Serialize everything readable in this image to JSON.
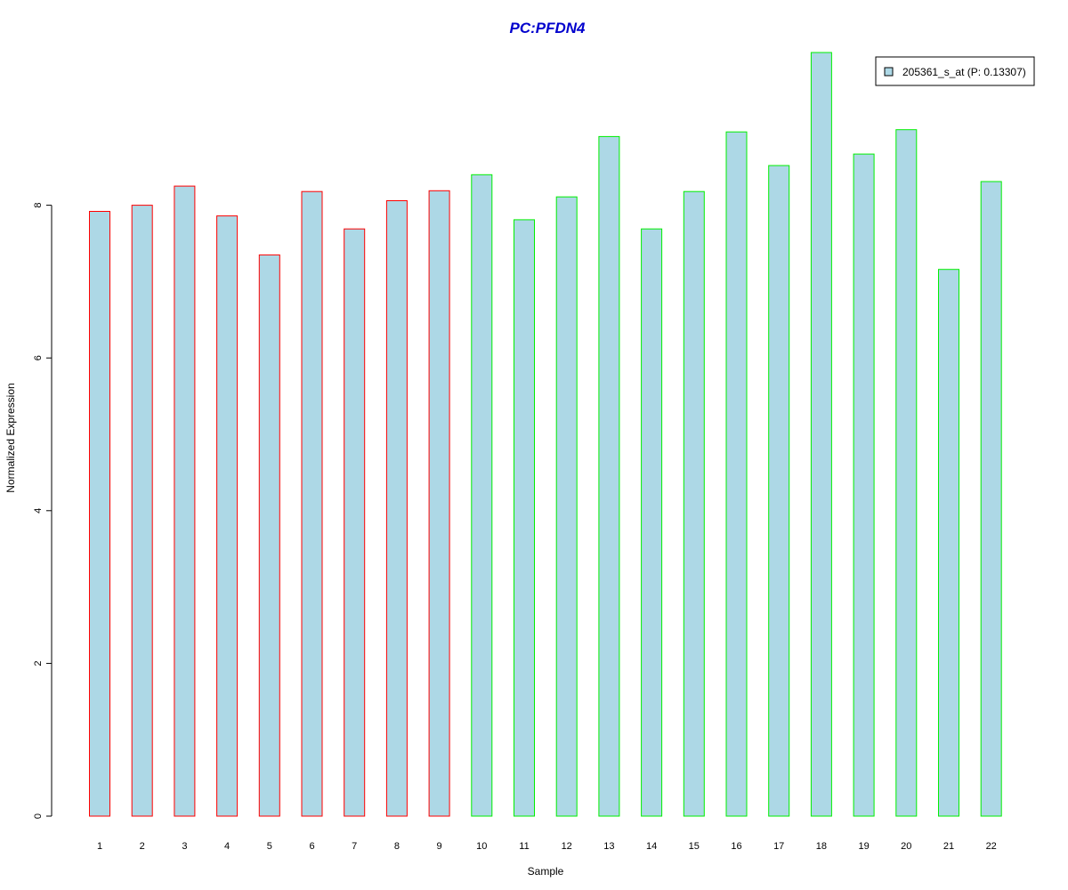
{
  "colors": {
    "bar_fill": "#add8e6",
    "group1_border": "#ff0000",
    "group2_border": "#00ee00",
    "title": "#0000cd",
    "axis": "#000000"
  },
  "chart_data": {
    "type": "bar",
    "title": "PC:PFDN4",
    "xlabel": "Sample",
    "ylabel": "Normalized Expression",
    "ylim": [
      0,
      10
    ],
    "yticks": [
      0,
      2,
      4,
      6,
      8
    ],
    "categories": [
      "1",
      "2",
      "3",
      "4",
      "5",
      "6",
      "7",
      "8",
      "9",
      "10",
      "11",
      "12",
      "13",
      "14",
      "15",
      "16",
      "17",
      "18",
      "19",
      "20",
      "21",
      "22"
    ],
    "series": [
      {
        "name": "205361_s_at (P: 0.13307)",
        "values": [
          7.92,
          8.0,
          8.25,
          7.86,
          7.35,
          8.18,
          7.69,
          8.06,
          8.19,
          8.4,
          7.81,
          8.11,
          8.9,
          7.69,
          8.18,
          8.96,
          8.52,
          10.0,
          8.67,
          8.99,
          7.16,
          8.31
        ]
      }
    ],
    "bar_groups": [
      "1",
      "1",
      "1",
      "1",
      "1",
      "1",
      "1",
      "1",
      "1",
      "2",
      "2",
      "2",
      "2",
      "2",
      "2",
      "2",
      "2",
      "2",
      "2",
      "2",
      "2",
      "2"
    ],
    "legend": {
      "position": "top-right",
      "label": "205361_s_at (P: 0.13307)"
    },
    "grid": false
  }
}
